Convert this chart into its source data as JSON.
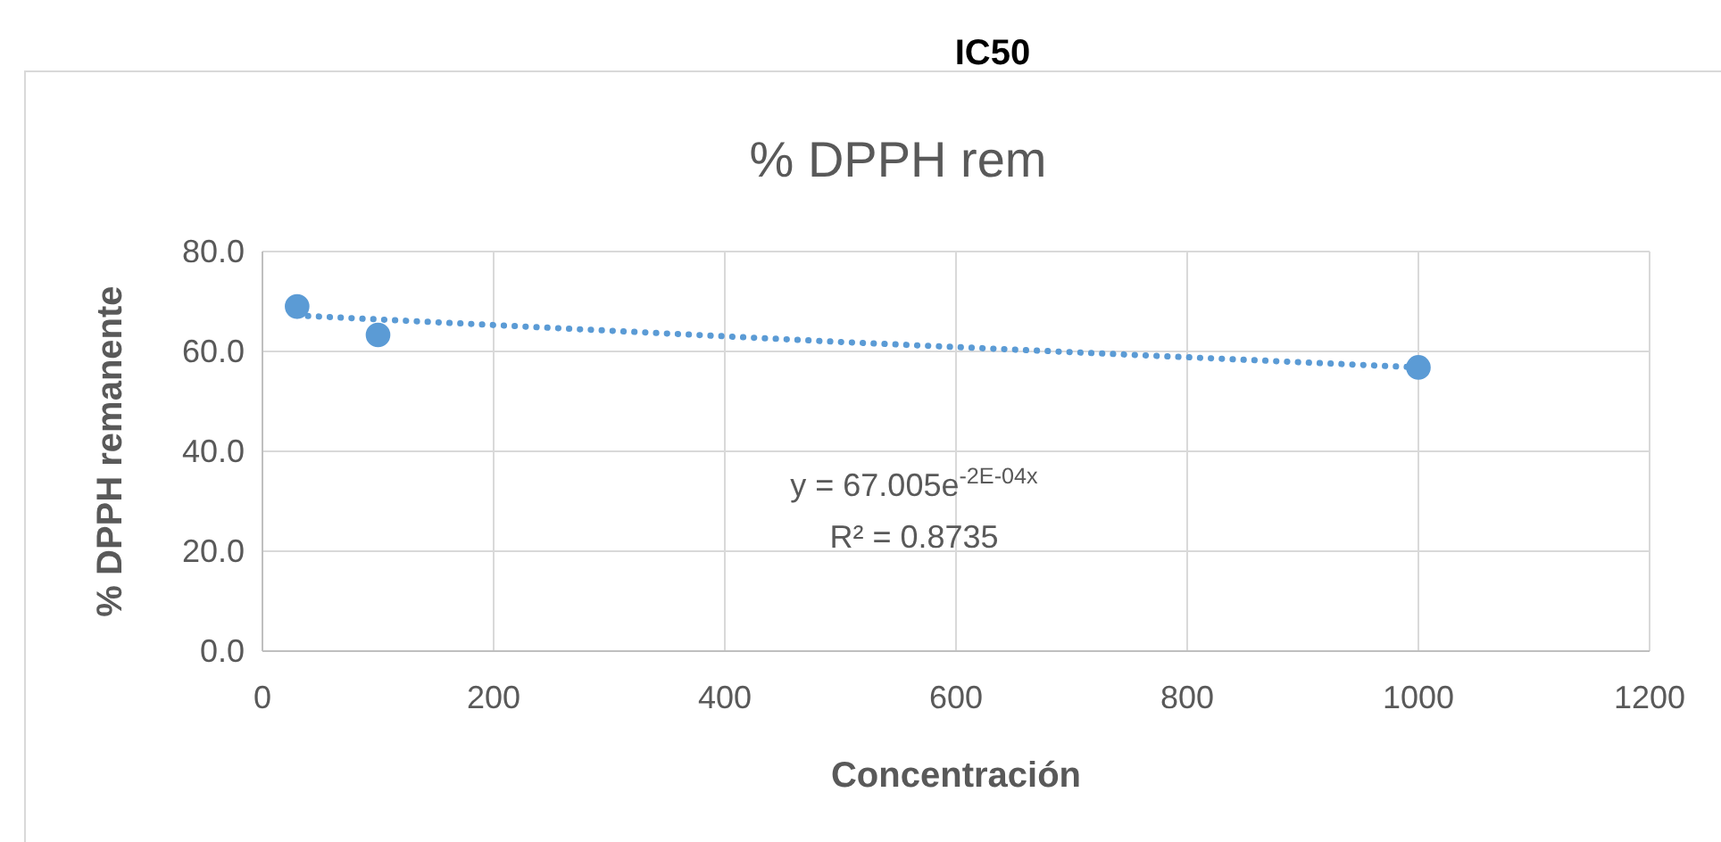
{
  "chart_data": {
    "type": "scatter",
    "title": "IC50",
    "subtitle": "% DPPH rem",
    "xlabel": "Concentración",
    "ylabel": "% DPPH remanente",
    "series": [
      {
        "color": "#5b9bd5",
        "x": [
          30,
          100,
          1000
        ],
        "values": [
          69.0,
          63.3,
          56.8
        ],
        "marker": "circle"
      },
      {
        "type": "line",
        "color": "#5b9bd5",
        "x": [
          30,
          500,
          1000
        ],
        "values": [
          67.2,
          61.9,
          56.8
        ],
        "marker": "none",
        "line_style": "dotted"
      }
    ],
    "xlim": [
      0,
      1200
    ],
    "xticks": [
      0,
      200,
      400,
      600,
      800,
      1000,
      1200
    ],
    "ylim": [
      0,
      80
    ],
    "yticks": [
      {
        "value": 0,
        "label": "0.0"
      },
      {
        "value": 20,
        "label": "20.0"
      },
      {
        "value": 40,
        "label": "40.0"
      },
      {
        "value": 60,
        "label": "60.0"
      },
      {
        "value": 80,
        "label": "80.0"
      }
    ],
    "grid": true,
    "annotations": [
      "y = 67.005e$^{-2E-04x}$",
      "R² = 0.8735"
    ]
  }
}
